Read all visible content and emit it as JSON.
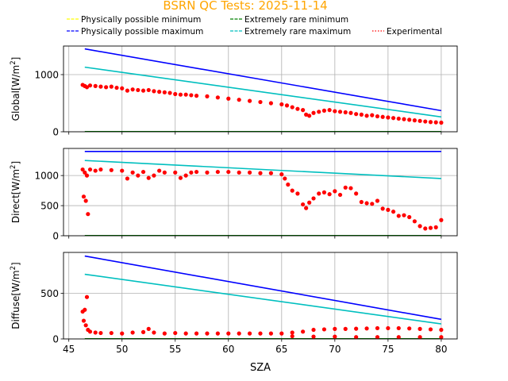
{
  "chart_data": {
    "type": "line",
    "title": "BSRN QC Tests: 2025-11-14",
    "title_color": "#ffa500",
    "xlabel": "SZA",
    "xlim": [
      44.5,
      81.5
    ],
    "x_ticks": [
      45,
      50,
      55,
      60,
      65,
      70,
      75,
      80
    ],
    "grid": true,
    "legend": {
      "placement": "top",
      "entries": [
        {
          "name": "Physically possible minimum",
          "color": "#ffff00",
          "style": "dashed"
        },
        {
          "name": "Extremely rare minimum",
          "color": "#008000",
          "style": "dashed"
        },
        {
          "name": "Physically possible maximum",
          "color": "#0000ff",
          "style": "dashed"
        },
        {
          "name": "Extremely rare maximum",
          "color": "#00bfbf",
          "style": "dashed"
        },
        {
          "name": "Experimental",
          "color": "#ff0000",
          "style": "dotted"
        }
      ]
    },
    "panels": [
      {
        "ylabel": "Global[W/m²]",
        "ylabel_main": "Global[W/m",
        "ylabel_sup": "2",
        "ylabel_end": "]",
        "ylim": [
          0,
          1500
        ],
        "y_ticks": [
          0,
          1000
        ],
        "series": [
          {
            "name": "Physically possible minimum",
            "color": "#ffff00",
            "x": [
              46.5,
              80
            ],
            "y": [
              -4,
              -4
            ]
          },
          {
            "name": "Extremely rare minimum",
            "color": "#008000",
            "x": [
              46.5,
              80
            ],
            "y": [
              2,
              2
            ]
          },
          {
            "name": "Physically possible maximum",
            "color": "#0000ff",
            "x": [
              46.5,
              80
            ],
            "y": [
              1450,
              370
            ]
          },
          {
            "name": "Extremely rare maximum",
            "color": "#00bfbf",
            "x": [
              46.5,
              80
            ],
            "y": [
              1130,
              260
            ]
          },
          {
            "name": "Experimental",
            "color": "#ff0000",
            "type": "scatter",
            "x": [
              46.3,
              46.5,
              46.7,
              47,
              47.5,
              48,
              48.5,
              49,
              49.5,
              50,
              50.5,
              51,
              51.5,
              52,
              52.5,
              53,
              53.5,
              54,
              54.5,
              55,
              55.5,
              56,
              56.5,
              57,
              58,
              59,
              60,
              61,
              62,
              63,
              64,
              65,
              65.5,
              66,
              66.5,
              67,
              67.3,
              67.6,
              68,
              68.5,
              69,
              69.5,
              70,
              70.5,
              71,
              71.5,
              72,
              72.5,
              73,
              73.5,
              74,
              74.5,
              75,
              75.5,
              76,
              76.5,
              77,
              77.5,
              78,
              78.5,
              79,
              79.5,
              80
            ],
            "y": [
              820,
              800,
              780,
              810,
              800,
              790,
              780,
              790,
              770,
              760,
              720,
              740,
              730,
              720,
              730,
              710,
              700,
              690,
              680,
              660,
              650,
              650,
              640,
              630,
              620,
              600,
              580,
              560,
              540,
              520,
              500,
              480,
              460,
              430,
              400,
              380,
              300,
              280,
              330,
              350,
              370,
              380,
              360,
              350,
              340,
              330,
              310,
              300,
              280,
              290,
              270,
              260,
              250,
              240,
              230,
              220,
              210,
              200,
              190,
              180,
              170,
              165,
              160
            ]
          }
        ]
      },
      {
        "ylabel": "Direct[W/m²]",
        "ylabel_main": "Direct[W/m",
        "ylabel_sup": "2",
        "ylabel_end": "]",
        "ylim": [
          0,
          1450
        ],
        "y_ticks": [
          0,
          500,
          1000
        ],
        "series": [
          {
            "name": "Physically possible minimum",
            "color": "#ffff00",
            "x": [
              46.5,
              80
            ],
            "y": [
              -4,
              -4
            ]
          },
          {
            "name": "Extremely rare minimum",
            "color": "#008000",
            "x": [
              46.5,
              80
            ],
            "y": [
              2,
              2
            ]
          },
          {
            "name": "Physically possible maximum",
            "color": "#0000ff",
            "x": [
              46.5,
              80
            ],
            "y": [
              1400,
              1400
            ]
          },
          {
            "name": "Extremely rare maximum",
            "color": "#00bfbf",
            "x": [
              46.5,
              80
            ],
            "y": [
              1250,
              950
            ]
          },
          {
            "name": "Experimental",
            "color": "#ff0000",
            "type": "scatter",
            "x": [
              46.3,
              46.4,
              46.5,
              46.6,
              46.7,
              46.8,
              47,
              47.5,
              48,
              49,
              50,
              50.5,
              51,
              51.5,
              52,
              52.5,
              53,
              53.5,
              54,
              55,
              55.5,
              56,
              56.5,
              57,
              58,
              59,
              60,
              61,
              62,
              63,
              64,
              65,
              65.3,
              65.6,
              66,
              66.5,
              67,
              67.3,
              67.6,
              68,
              68.5,
              69,
              69.5,
              70,
              70.5,
              71,
              71.5,
              72,
              72.5,
              73,
              73.5,
              74,
              74.5,
              75,
              75.5,
              76,
              76.5,
              77,
              77.5,
              78,
              78.5,
              79,
              79.5,
              80
            ],
            "y": [
              1100,
              650,
              1050,
              580,
              1000,
              360,
              1100,
              1080,
              1100,
              1090,
              1080,
              950,
              1050,
              1000,
              1060,
              960,
              1000,
              1080,
              1050,
              1050,
              960,
              1000,
              1050,
              1060,
              1050,
              1060,
              1060,
              1050,
              1050,
              1040,
              1040,
              1020,
              950,
              850,
              750,
              700,
              520,
              460,
              550,
              620,
              700,
              720,
              690,
              740,
              680,
              800,
              790,
              700,
              560,
              540,
              530,
              580,
              450,
              430,
              400,
              330,
              340,
              310,
              240,
              160,
              120,
              130,
              140,
              260
            ]
          }
        ]
      },
      {
        "ylabel": "Diffuse[W/m²]",
        "ylabel_main": "Diffuse[W/m",
        "ylabel_sup": "2",
        "ylabel_end": "]",
        "ylim": [
          0,
          950
        ],
        "y_ticks": [
          0,
          500
        ],
        "series": [
          {
            "name": "Physically possible minimum",
            "color": "#ffff00",
            "x": [
              46.5,
              80
            ],
            "y": [
              -4,
              -4
            ]
          },
          {
            "name": "Extremely rare minimum",
            "color": "#008000",
            "x": [
              46.5,
              80
            ],
            "y": [
              2,
              2
            ]
          },
          {
            "name": "Physically possible maximum",
            "color": "#0000ff",
            "x": [
              46.5,
              80
            ],
            "y": [
              910,
              215
            ]
          },
          {
            "name": "Extremely rare maximum",
            "color": "#00bfbf",
            "x": [
              46.5,
              80
            ],
            "y": [
              710,
              165
            ]
          },
          {
            "name": "Experimental",
            "color": "#ff0000",
            "type": "scatter",
            "x": [
              46.3,
              46.4,
              46.5,
              46.6,
              46.7,
              46.8,
              47,
              47.5,
              48,
              49,
              50,
              51,
              52,
              52.5,
              53,
              54,
              55,
              56,
              57,
              58,
              59,
              60,
              61,
              62,
              63,
              64,
              65,
              66,
              67,
              68,
              69,
              70,
              71,
              72,
              73,
              74,
              75,
              76,
              77,
              78,
              79,
              80,
              66,
              68,
              70,
              72,
              74,
              76,
              78,
              80
            ],
            "y": [
              300,
              200,
              320,
              150,
              460,
              100,
              80,
              70,
              65,
              65,
              60,
              70,
              75,
              110,
              70,
              60,
              65,
              60,
              60,
              60,
              60,
              60,
              60,
              60,
              60,
              60,
              60,
              70,
              80,
              100,
              105,
              110,
              110,
              112,
              115,
              118,
              118,
              118,
              115,
              110,
              105,
              100,
              30,
              25,
              25,
              20,
              20,
              20,
              20,
              20
            ]
          }
        ]
      }
    ]
  }
}
